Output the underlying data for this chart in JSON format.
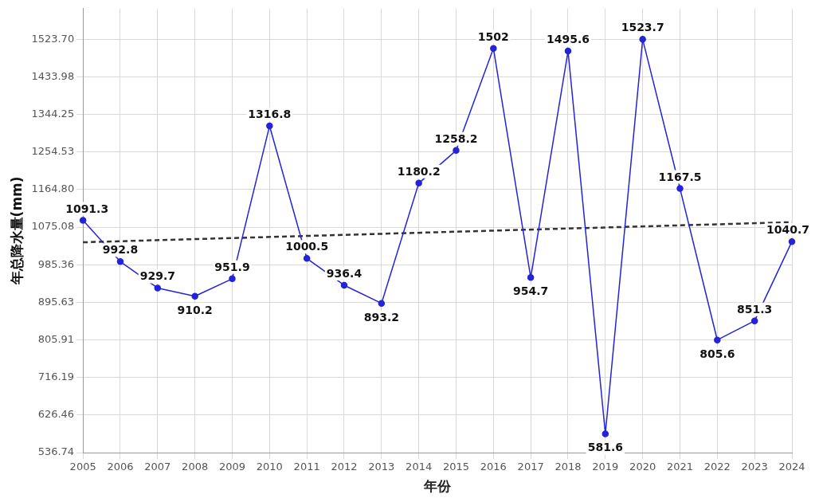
{
  "chart_data": {
    "type": "line",
    "ylabel": "年总降水量(mm)",
    "xlabel": "年份",
    "categories": [
      "2005",
      "2006",
      "2007",
      "2008",
      "2009",
      "2010",
      "2011",
      "2012",
      "2013",
      "2014",
      "2015",
      "2016",
      "2017",
      "2018",
      "2019",
      "2020",
      "2021",
      "2022",
      "2023",
      "2024"
    ],
    "series": [
      {
        "color": "#2323d8",
        "marker": "circle",
        "values": [
          1091.3,
          992.8,
          929.7,
          910.2,
          951.9,
          1316.8,
          1000.5,
          936.4,
          893.2,
          1180.2,
          1258.2,
          1502,
          954.7,
          1495.6,
          581.6,
          1523.7,
          1167.5,
          805.6,
          851.3,
          1040.7
        ],
        "value_labels": [
          "1091.3",
          "992.8",
          "929.7",
          "910.2",
          "951.9",
          "1316.8",
          "1000.5",
          "936.4",
          "893.2",
          "1180.2",
          "1258.2",
          "1502",
          "954.7",
          "1495.6",
          "581.6",
          "1523.7",
          "1167.5",
          "805.6",
          "851.3",
          "1040.7"
        ]
      },
      {
        "type": "line",
        "color": "#333333",
        "line_style": "dashed",
        "marker": "none",
        "values": [
          1039,
          null,
          null,
          null,
          null,
          null,
          null,
          null,
          null,
          null,
          null,
          null,
          null,
          null,
          null,
          null,
          null,
          null,
          null,
          1087
        ]
      }
    ],
    "ylim": [
      536.74,
      1597
    ],
    "yticks": [
      536.74,
      626.46,
      716.19,
      805.91,
      895.63,
      985.36,
      1075.08,
      {
        "value": 1164.8,
        "label": "1164.80"
      },
      1254.53,
      1344.25,
      1433.98,
      {
        "value": 1523.7,
        "label": "1523.70"
      }
    ],
    "grid": true,
    "legend": false
  }
}
